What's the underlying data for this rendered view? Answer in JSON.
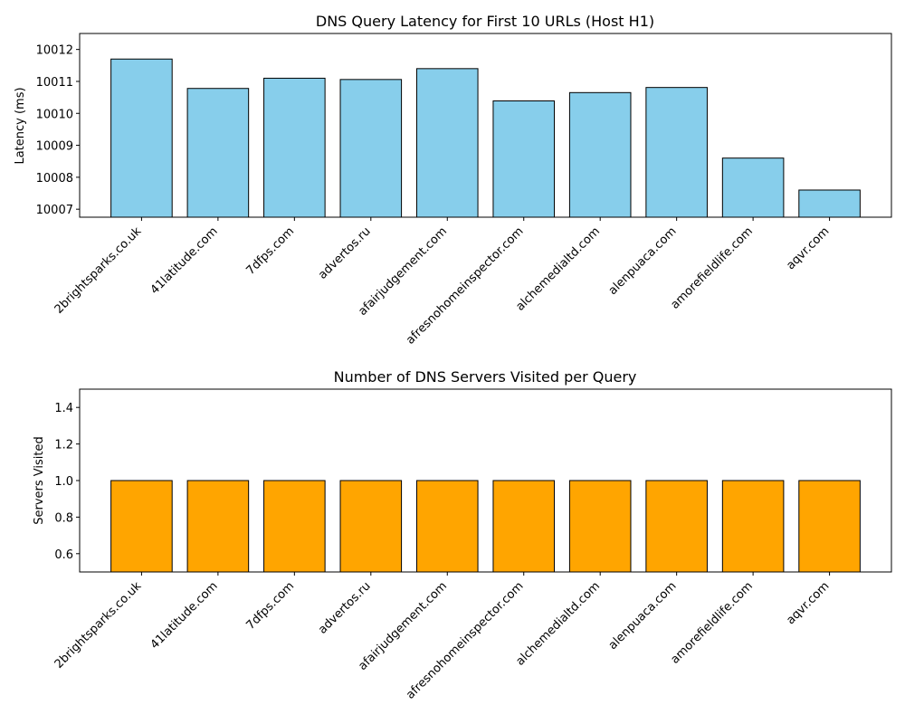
{
  "chart_data": [
    {
      "type": "bar",
      "title": "DNS Query Latency for First 10 URLs (Host H1)",
      "xlabel": "",
      "ylabel": "Latency (ms)",
      "categories": [
        "2brightsparks.co.uk",
        "41latitude.com",
        "7dfps.com",
        "advertos.ru",
        "afairjudgement.com",
        "afresnohomeinspector.com",
        "alchemedialtd.com",
        "alenpuaca.com",
        "amorefieldlife.com",
        "aqvr.com"
      ],
      "values": [
        10011.7,
        10010.78,
        10011.1,
        10011.06,
        10011.4,
        10010.39,
        10010.65,
        10010.81,
        10008.6,
        10007.6
      ],
      "ylim": [
        10006.75,
        10012.5
      ],
      "yticks": [
        10007,
        10008,
        10009,
        10010,
        10011,
        10012
      ],
      "bar_color": "#87CEEB",
      "grid": false
    },
    {
      "type": "bar",
      "title": "Number of DNS Servers Visited per Query",
      "xlabel": "",
      "ylabel": "Servers Visited",
      "categories": [
        "2brightsparks.co.uk",
        "41latitude.com",
        "7dfps.com",
        "advertos.ru",
        "afairjudgement.com",
        "afresnohomeinspector.com",
        "alchemedialtd.com",
        "alenpuaca.com",
        "amorefieldlife.com",
        "aqvr.com"
      ],
      "values": [
        1,
        1,
        1,
        1,
        1,
        1,
        1,
        1,
        1,
        1
      ],
      "ylim": [
        0.5,
        1.5
      ],
      "yticks": [
        0.6,
        0.8,
        1.0,
        1.2,
        1.4
      ],
      "ytick_labels": [
        "0.6",
        "0.8",
        "1.0",
        "1.2",
        "1.4"
      ],
      "bar_color": "#FFA500",
      "grid": false
    }
  ]
}
